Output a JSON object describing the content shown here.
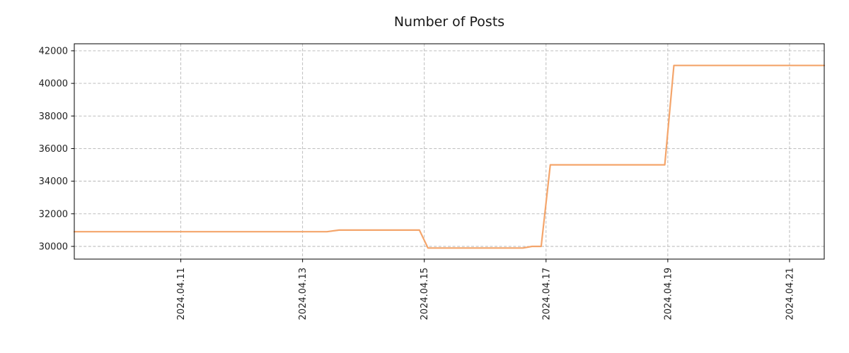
{
  "chart_data": {
    "type": "line",
    "title": "Number of Posts",
    "xlabel": "",
    "ylabel": "",
    "x_unit": "date (2024.MM.DD), plotted as day-of-April number",
    "x_ticks_day": [
      11,
      13,
      15,
      17,
      19,
      21
    ],
    "x_tick_labels": [
      "2024.04.11",
      "2024.04.13",
      "2024.04.15",
      "2024.04.17",
      "2024.04.19",
      "2024.04.21"
    ],
    "y_ticks": [
      30000,
      32000,
      34000,
      36000,
      38000,
      40000,
      42000
    ],
    "xlim_day": [
      9.25,
      21.57
    ],
    "ylim": [
      29220,
      42430
    ],
    "grid": true,
    "grid_color": "#b5b5b5",
    "axis_color": "#000000",
    "text_color": "#1f1f1f",
    "legend": "none",
    "series": [
      {
        "name": "Number of Posts",
        "color": "#f4a56b",
        "points_day_value": [
          [
            9.25,
            30900
          ],
          [
            13.4,
            30900
          ],
          [
            13.6,
            31000
          ],
          [
            14.92,
            31000
          ],
          [
            15.06,
            29900
          ],
          [
            16.62,
            29900
          ],
          [
            16.77,
            30000
          ],
          [
            16.92,
            30000
          ],
          [
            17.07,
            35000
          ],
          [
            18.95,
            35000
          ],
          [
            19.1,
            41100
          ],
          [
            21.57,
            41100
          ]
        ]
      }
    ]
  }
}
